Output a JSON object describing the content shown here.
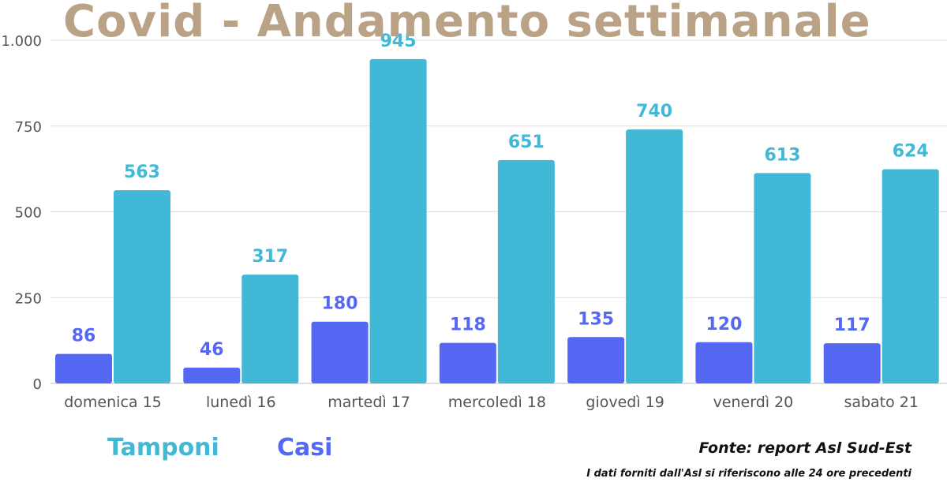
{
  "chart_data": {
    "type": "bar",
    "title": "Covid - Andamento settimanale",
    "categories": [
      "domenica 15",
      "lunedì 16",
      "martedì 17",
      "mercoledì 18",
      "giovedì 19",
      "venerdì 20",
      "sabato 21"
    ],
    "series": [
      {
        "name": "Casi",
        "color": "#5468f4",
        "values": [
          86,
          46,
          180,
          118,
          135,
          120,
          117
        ]
      },
      {
        "name": "Tamponi",
        "color": "#41b8d5",
        "values": [
          563,
          317,
          945,
          651,
          740,
          613,
          624
        ]
      }
    ],
    "ylim": [
      0,
      1000
    ],
    "yticks": [
      0,
      250,
      500,
      750,
      1000
    ],
    "ytick_labels": [
      "0",
      "250",
      "500",
      "750",
      "1.000"
    ],
    "grid": true,
    "legend_position": "bottom-left"
  },
  "legend": {
    "tamponi_label": "Tamponi",
    "casi_label": "Casi"
  },
  "footer": {
    "source": "Fonte: report Asl Sud-Est",
    "note": "I dati forniti dall'Asl si riferiscono alle 24 ore precedenti"
  }
}
